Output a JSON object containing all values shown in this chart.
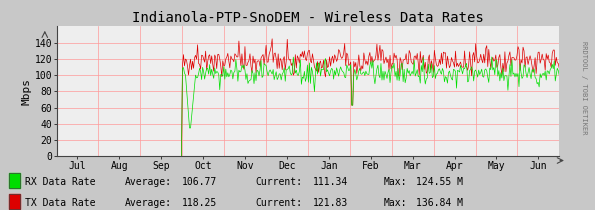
{
  "title": "Indianola-PTP-SnoDEM - Wireless Data Rates",
  "ylabel": "Mbps",
  "bg_color": "#c8c8c8",
  "plot_bg_color": "#eeeeee",
  "grid_color": "#ff9999",
  "months": [
    "Jul",
    "Aug",
    "Sep",
    "Oct",
    "Nov",
    "Dec",
    "Jan",
    "Feb",
    "Mar",
    "Apr",
    "May",
    "Jun"
  ],
  "ylim": [
    0,
    160
  ],
  "yticks": [
    0,
    20,
    40,
    60,
    80,
    100,
    120,
    140
  ],
  "rx_color": "#00dd00",
  "tx_color": "#dd0000",
  "rx_label": "RX Data Rate",
  "tx_label": "TX Data Rate",
  "rx_avg": "106.77",
  "rx_cur": "111.34",
  "rx_max": "124.55 M",
  "tx_avg": "118.25",
  "tx_cur": "121.83",
  "tx_max": "136.84 M",
  "rrdtool_text": "RRDTOOL / TOBI OETIKER",
  "title_fontsize": 10,
  "axis_fontsize": 7,
  "legend_fontsize": 7,
  "watermark_fontsize": 5
}
